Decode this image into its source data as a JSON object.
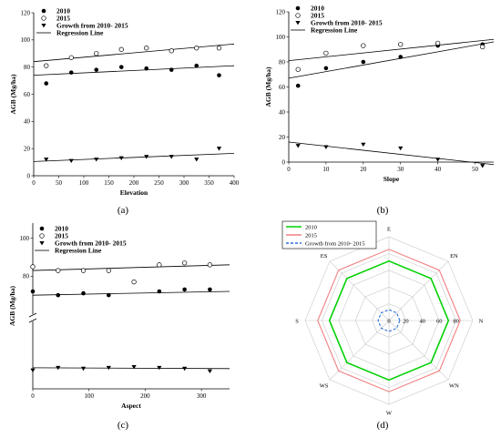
{
  "panels": {
    "a": "(a)",
    "b": "(b)",
    "c": "(c)",
    "d": "(d)"
  },
  "chart_data": [
    {
      "id": "a",
      "type": "scatter",
      "xlabel": "Elevation",
      "ylabel": "AGB (Mg/ha)",
      "xlim": [
        0,
        400
      ],
      "ylim": [
        0,
        120
      ],
      "xticks": [
        0,
        50,
        100,
        150,
        200,
        250,
        300,
        350,
        400
      ],
      "yticks": [
        0,
        20,
        40,
        60,
        80,
        100,
        120
      ],
      "legend": "top-left",
      "legend_entries": [
        "2010",
        "2015",
        "Growth from 2010- 2015",
        "Regression Line"
      ],
      "series": [
        {
          "name": "2010",
          "marker": "filled-circle",
          "x": [
            25,
            75,
            125,
            175,
            225,
            275,
            325,
            370
          ],
          "y": [
            68,
            76,
            78,
            80,
            79,
            78,
            81,
            74
          ]
        },
        {
          "name": "2015",
          "marker": "open-circle",
          "x": [
            25,
            75,
            125,
            175,
            225,
            275,
            325,
            370
          ],
          "y": [
            81,
            87,
            90,
            93,
            94,
            92,
            94,
            94
          ]
        },
        {
          "name": "Growth from 2010- 2015",
          "marker": "triangle-down",
          "x": [
            25,
            75,
            125,
            175,
            225,
            275,
            325,
            370
          ],
          "y": [
            12,
            11,
            12,
            13,
            14,
            14,
            12,
            20
          ]
        }
      ],
      "regression": [
        {
          "x": [
            0,
            400
          ],
          "y": [
            84,
            97
          ]
        },
        {
          "x": [
            0,
            400
          ],
          "y": [
            74,
            81
          ]
        },
        {
          "x": [
            0,
            400
          ],
          "y": [
            10.5,
            16.5
          ]
        }
      ]
    },
    {
      "id": "b",
      "type": "scatter",
      "xlabel": "Slope",
      "ylabel": "AGB (Mg/ha)",
      "xlim": [
        0,
        55
      ],
      "ylim": [
        0,
        120
      ],
      "xticks": [
        0,
        10,
        20,
        30,
        40,
        50
      ],
      "yticks": [
        0,
        20,
        40,
        60,
        80,
        100,
        120
      ],
      "legend": "top-left",
      "legend_entries": [
        "2010",
        "2015",
        "Growth from 2010- 2015",
        "Regression Line"
      ],
      "series": [
        {
          "name": "2010",
          "marker": "filled-circle",
          "x": [
            2.5,
            10,
            20,
            30,
            40,
            52
          ],
          "y": [
            61,
            75,
            80,
            84,
            93,
            94
          ]
        },
        {
          "name": "2015",
          "marker": "open-circle",
          "x": [
            2.5,
            10,
            20,
            30,
            40,
            52
          ],
          "y": [
            74,
            87,
            93,
            94,
            95,
            92
          ]
        },
        {
          "name": "Growth from 2010- 2015",
          "marker": "triangle-down",
          "x": [
            2.5,
            10,
            20,
            30,
            40,
            52
          ],
          "y": [
            13,
            12,
            14,
            11,
            2,
            -3
          ]
        }
      ],
      "regression": [
        {
          "x": [
            0,
            55
          ],
          "y": [
            81,
            98
          ]
        },
        {
          "x": [
            0,
            55
          ],
          "y": [
            67,
            96
          ]
        },
        {
          "x": [
            0,
            55
          ],
          "y": [
            16,
            -2
          ]
        }
      ]
    },
    {
      "id": "c",
      "type": "scatter",
      "xlabel": "Aspect",
      "ylabel": "AGB (Mg/ha)",
      "xlim": [
        0,
        350
      ],
      "ylim_upper": [
        60,
        108
      ],
      "ylim_lower": [
        0,
        40
      ],
      "xticks": [
        0,
        100,
        200,
        300
      ],
      "yticks": [
        80,
        100
      ],
      "broken_axis": true,
      "legend": "top-left",
      "legend_entries": [
        "2010",
        "2015",
        "Growth from 2010- 2015",
        "Regression Line"
      ],
      "series": [
        {
          "name": "2010",
          "marker": "filled-circle",
          "x": [
            0,
            45,
            90,
            135,
            225,
            270,
            315
          ],
          "y": [
            72,
            70,
            71,
            70,
            72,
            73,
            73
          ]
        },
        {
          "name": "2015",
          "marker": "open-circle",
          "x": [
            0,
            45,
            90,
            135,
            180,
            225,
            270,
            315
          ],
          "y": [
            85,
            83,
            83,
            83,
            77,
            86,
            87,
            86
          ]
        },
        {
          "name": "Growth from 2010- 2015",
          "marker": "triangle-down",
          "x": [
            0,
            45,
            90,
            135,
            180,
            225,
            270,
            315
          ],
          "y": [
            11,
            12.5,
            12,
            12.5,
            13,
            12.5,
            12,
            10.5
          ]
        }
      ],
      "regression": [
        {
          "x": [
            0,
            350
          ],
          "y": [
            83,
            86
          ]
        },
        {
          "x": [
            0,
            350
          ],
          "y": [
            70,
            72
          ]
        },
        {
          "x": [
            0,
            350
          ],
          "y": [
            12.5,
            12
          ]
        }
      ]
    },
    {
      "id": "d",
      "type": "radar",
      "axes": [
        "N",
        "EN",
        "E",
        "ES",
        "S",
        "WS",
        "W",
        "WN"
      ],
      "rlim": [
        0,
        100
      ],
      "rticks": [
        0,
        20,
        40,
        60,
        80
      ],
      "legend": "top-left",
      "series": [
        {
          "name": "2010",
          "color": "#00d000",
          "style": "solid",
          "values": [
            71,
            71,
            71,
            71,
            71,
            71,
            71,
            71
          ]
        },
        {
          "name": "2015",
          "color": "#f08080",
          "style": "solid",
          "values": [
            85,
            85,
            85,
            85,
            85,
            85,
            85,
            85
          ]
        },
        {
          "name": "Growth from 2010- 2015",
          "color": "#2b6fd6",
          "style": "dashed",
          "values": [
            13,
            13,
            13,
            13,
            13,
            13,
            13,
            13
          ]
        }
      ]
    }
  ]
}
